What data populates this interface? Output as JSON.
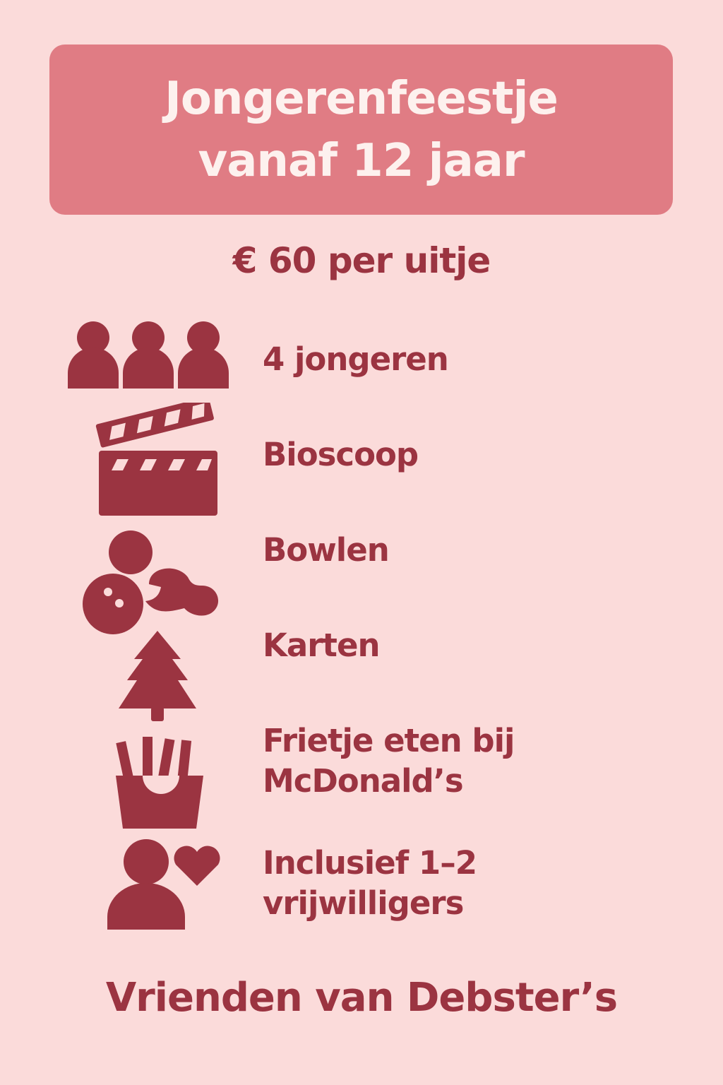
{
  "header": {
    "title_line1": "Jongerenfeestje",
    "title_line2": "vanaf 12 jaar"
  },
  "price": "€ 60 per uitje",
  "items": [
    {
      "icon": "group-icon",
      "label": "4 jongeren"
    },
    {
      "icon": "clapperboard-icon",
      "label": "Bioscoop"
    },
    {
      "icon": "bowling-icon",
      "label": "Bowlen"
    },
    {
      "icon": "tree-icon",
      "label": "Karten"
    },
    {
      "icon": "fries-icon",
      "label_line1": "Frietje eten bij",
      "label_line2": "McDonald’s"
    },
    {
      "icon": "volunteer-heart-icon",
      "label_line1": "Inclusief 1–2",
      "label_line2": "vrijwilligers"
    }
  ],
  "footer": "Vrienden van Debster’s",
  "colors": {
    "background": "#fbdbda",
    "banner": "#e07c84",
    "accent": "#9b3441",
    "title_text": "#fdf1ee"
  }
}
